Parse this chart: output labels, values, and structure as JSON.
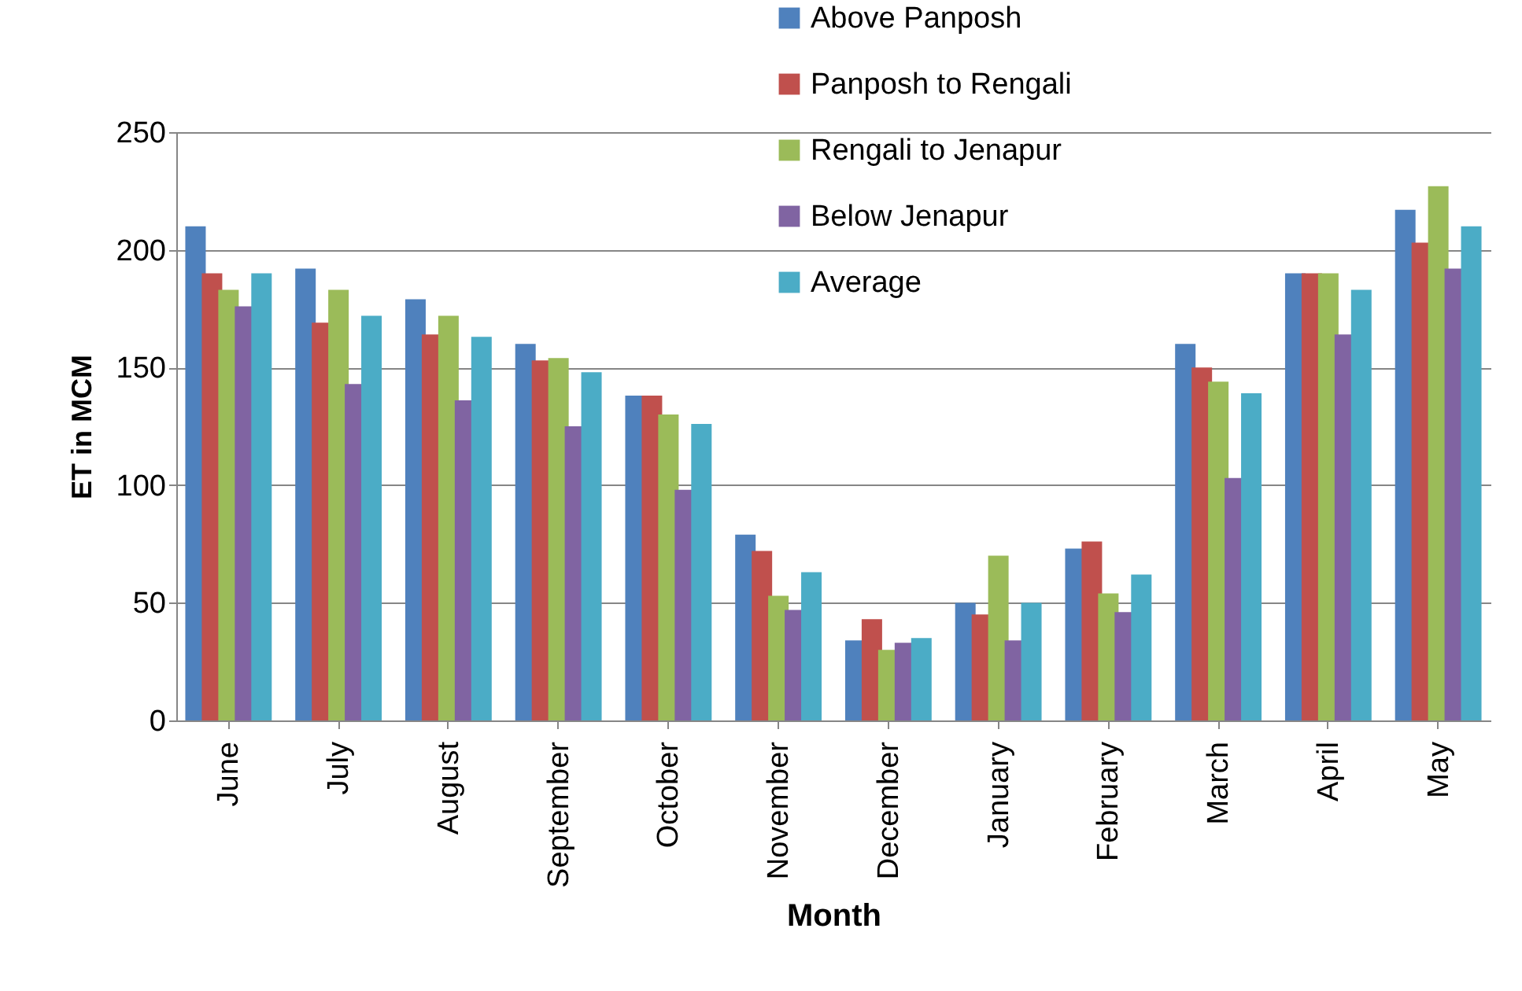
{
  "chart_data": {
    "type": "bar",
    "xlabel": "Month",
    "ylabel": "ET in MCM",
    "categories": [
      "June",
      "July",
      "August",
      "September",
      "October",
      "November",
      "December",
      "January",
      "February",
      "March",
      "April",
      "May"
    ],
    "series": [
      {
        "name": "Above Panposh",
        "color": "#4f81bd",
        "values": [
          210,
          192,
          179,
          160,
          138,
          79,
          34,
          50,
          73,
          160,
          190,
          217
        ]
      },
      {
        "name": "Panposh to Rengali",
        "color": "#c0504d",
        "values": [
          190,
          169,
          164,
          153,
          138,
          72,
          43,
          45,
          76,
          150,
          190,
          203
        ]
      },
      {
        "name": "Rengali to Jenapur",
        "color": "#9bbb59",
        "values": [
          183,
          183,
          172,
          154,
          130,
          53,
          30,
          70,
          54,
          144,
          190,
          227
        ]
      },
      {
        "name": "Below Jenapur",
        "color": "#8064a2",
        "values": [
          176,
          143,
          136,
          125,
          98,
          47,
          33,
          34,
          46,
          103,
          164,
          192
        ]
      },
      {
        "name": "Average",
        "color": "#4bacc6",
        "values": [
          190,
          172,
          163,
          148,
          126,
          63,
          35,
          50,
          62,
          139,
          183,
          210
        ]
      }
    ],
    "ylim": [
      0,
      250
    ],
    "yticks": [
      0,
      50,
      100,
      150,
      200,
      250
    ],
    "grid": "y",
    "legend": "top right"
  }
}
